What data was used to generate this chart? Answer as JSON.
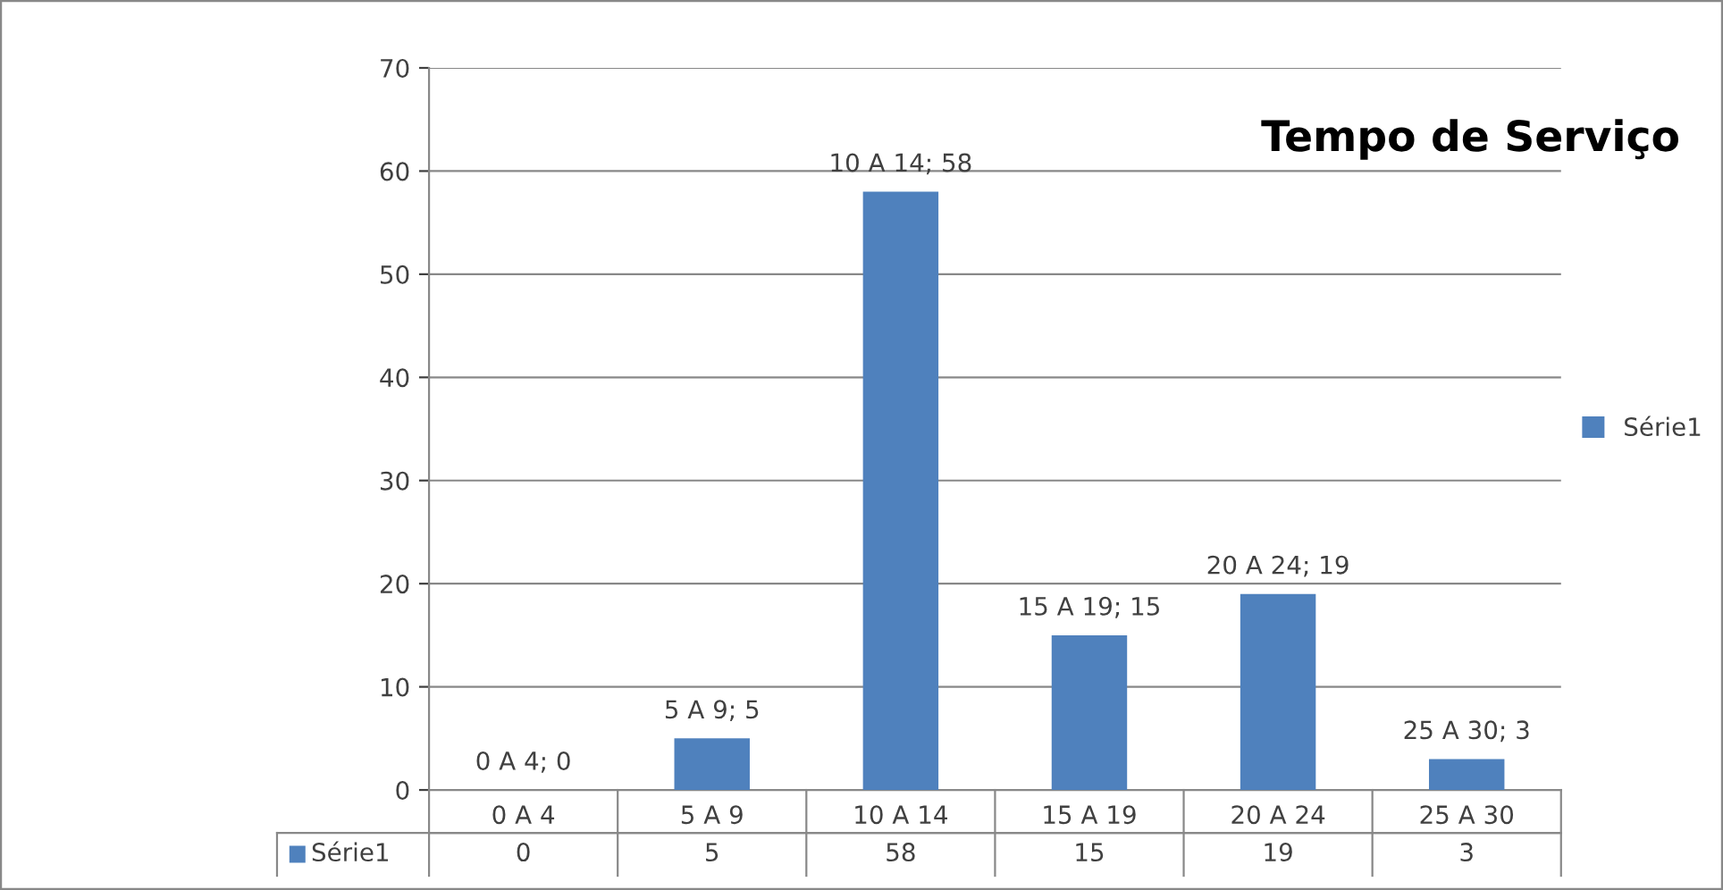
{
  "chart_data": {
    "type": "bar",
    "title": "Tempo de Serviço",
    "categories": [
      "0 A 4",
      "5 A 9",
      "10 A 14",
      "15 A 19",
      "20 A 24",
      "25 A 30"
    ],
    "series": [
      {
        "name": "Série1",
        "color": "#4f81bd",
        "values": [
          0,
          5,
          58,
          15,
          19,
          3
        ]
      }
    ],
    "annotations": [
      {
        "text": "0 A 4; 0",
        "x": "0 A 4",
        "y": 0
      },
      {
        "text": "5 A 9; 5",
        "x": "5 A 9",
        "y": 5
      },
      {
        "text": "10 A 14; 58",
        "x": "10 A 14",
        "y": 58
      },
      {
        "text": "15 A 19; 15",
        "x": "15 A 19",
        "y": 15
      },
      {
        "text": "20 A 24; 19",
        "x": "20 A 24",
        "y": 19
      },
      {
        "text": "25 A 30; 3",
        "x": "25 A 30",
        "y": 3
      }
    ],
    "ylim": [
      0,
      70
    ],
    "yticks": [
      0,
      10,
      20,
      30,
      40,
      50,
      60,
      70
    ],
    "grid": "y",
    "legend": "right",
    "data_labels": true
  }
}
